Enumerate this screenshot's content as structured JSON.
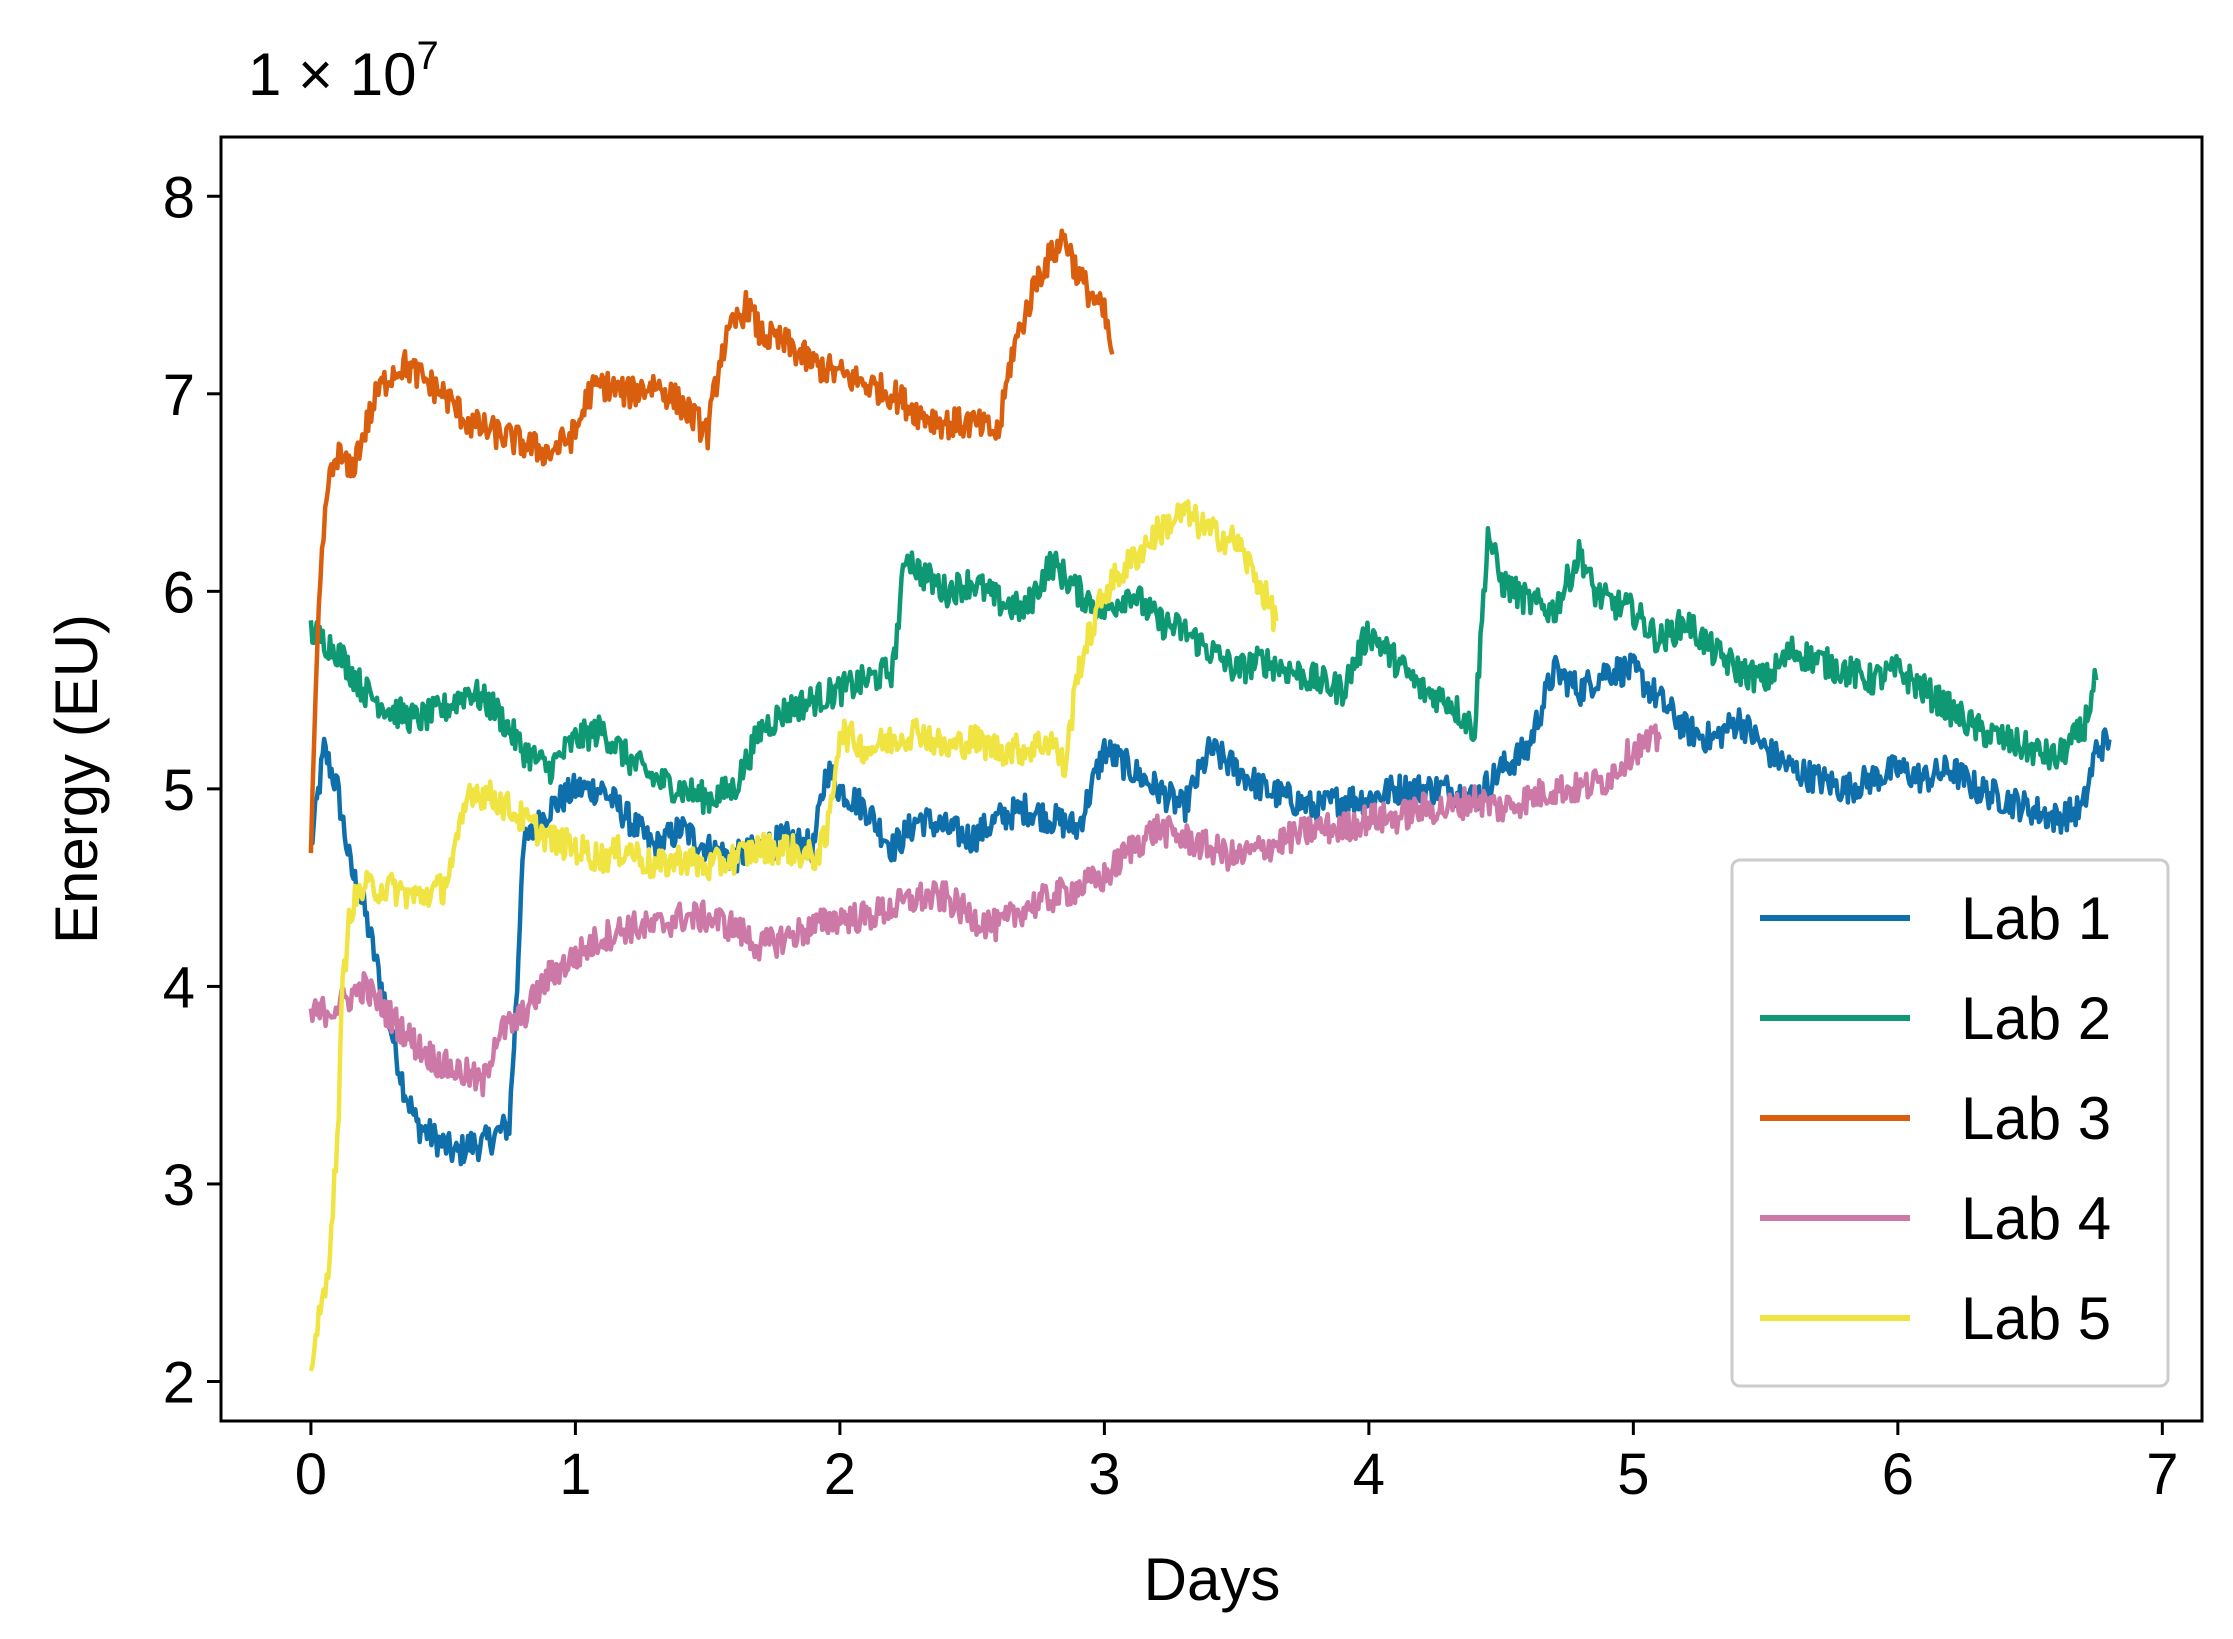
{
  "chart_data": {
    "type": "line",
    "title": "",
    "xlabel": "Days",
    "ylabel": "Energy (EU)",
    "offset_label": {
      "base": "1 × 10",
      "exponent": "7"
    },
    "xlim": [
      -0.34,
      7.15
    ],
    "ylim": [
      1.8,
      8.3
    ],
    "xticks": [
      0,
      1,
      2,
      3,
      4,
      5,
      6,
      7
    ],
    "yticks": [
      2,
      3,
      4,
      5,
      6,
      7,
      8
    ],
    "legend_position": "lower-right",
    "grid": false,
    "series": [
      {
        "name": "Lab 1",
        "color": "#0f6fab",
        "x": [
          0,
          0.05,
          0.1,
          0.15,
          0.2,
          0.25,
          0.3,
          0.35,
          0.4,
          0.45,
          0.5,
          0.55,
          0.6,
          0.65,
          0.7,
          0.75,
          0.78,
          0.8,
          0.85,
          0.9,
          1.0,
          1.1,
          1.2,
          1.3,
          1.4,
          1.5,
          1.6,
          1.7,
          1.8,
          1.9,
          1.95,
          2.0,
          2.1,
          2.2,
          2.3,
          2.4,
          2.5,
          2.6,
          2.7,
          2.8,
          2.9,
          2.95,
          3.0,
          3.1,
          3.2,
          3.3,
          3.4,
          3.5,
          3.6,
          3.7,
          3.8,
          3.9,
          4.0,
          4.1,
          4.2,
          4.3,
          4.4,
          4.5,
          4.6,
          4.7,
          4.8,
          4.9,
          5.0,
          5.1,
          5.2,
          5.3,
          5.4,
          5.5,
          5.6,
          5.7,
          5.8,
          5.9,
          6.0,
          6.1,
          6.2,
          6.3,
          6.4,
          6.5,
          6.6,
          6.7,
          6.75,
          6.8
        ],
        "y": [
          4.7,
          5.2,
          5.0,
          4.6,
          4.4,
          4.1,
          3.8,
          3.5,
          3.3,
          3.25,
          3.2,
          3.15,
          3.2,
          3.2,
          3.25,
          3.3,
          4.0,
          4.7,
          4.8,
          4.9,
          5.0,
          5.0,
          4.85,
          4.7,
          4.8,
          4.7,
          4.65,
          4.7,
          4.75,
          4.7,
          5.1,
          5.0,
          4.9,
          4.7,
          4.85,
          4.8,
          4.75,
          4.85,
          4.9,
          4.85,
          4.8,
          5.0,
          5.2,
          5.1,
          5.0,
          4.9,
          5.2,
          5.1,
          5.0,
          4.95,
          4.9,
          4.95,
          4.95,
          5.0,
          5.0,
          5.0,
          4.95,
          5.1,
          5.2,
          5.6,
          5.5,
          5.6,
          5.6,
          5.45,
          5.3,
          5.25,
          5.35,
          5.2,
          5.1,
          5.05,
          5.0,
          5.05,
          5.1,
          5.05,
          5.1,
          5.0,
          4.95,
          4.9,
          4.85,
          4.9,
          5.2,
          5.25
        ]
      },
      {
        "name": "Lab 2",
        "color": "#0e9873",
        "x": [
          0,
          0.1,
          0.2,
          0.3,
          0.4,
          0.5,
          0.6,
          0.7,
          0.8,
          0.9,
          1.0,
          1.1,
          1.2,
          1.3,
          1.4,
          1.5,
          1.6,
          1.7,
          1.8,
          1.9,
          2.0,
          2.1,
          2.2,
          2.25,
          2.3,
          2.4,
          2.5,
          2.6,
          2.7,
          2.8,
          2.9,
          3.0,
          3.1,
          3.2,
          3.3,
          3.4,
          3.5,
          3.6,
          3.7,
          3.8,
          3.9,
          4.0,
          4.1,
          4.2,
          4.3,
          4.4,
          4.45,
          4.5,
          4.6,
          4.7,
          4.8,
          4.85,
          4.9,
          5.0,
          5.1,
          5.2,
          5.3,
          5.4,
          5.5,
          5.6,
          5.7,
          5.8,
          5.9,
          6.0,
          6.1,
          6.2,
          6.3,
          6.4,
          6.5,
          6.6,
          6.7,
          6.75
        ],
        "y": [
          5.8,
          5.7,
          5.5,
          5.4,
          5.35,
          5.4,
          5.5,
          5.4,
          5.2,
          5.1,
          5.25,
          5.3,
          5.15,
          5.05,
          5.0,
          4.95,
          5.0,
          5.3,
          5.4,
          5.45,
          5.5,
          5.55,
          5.6,
          6.2,
          6.1,
          6.0,
          6.05,
          5.95,
          5.9,
          6.15,
          6.0,
          5.9,
          6.0,
          5.85,
          5.8,
          5.7,
          5.6,
          5.65,
          5.6,
          5.55,
          5.5,
          5.8,
          5.65,
          5.5,
          5.45,
          5.3,
          6.3,
          6.05,
          5.95,
          5.9,
          6.2,
          6.0,
          5.95,
          5.9,
          5.75,
          5.85,
          5.7,
          5.6,
          5.55,
          5.7,
          5.65,
          5.6,
          5.55,
          5.6,
          5.5,
          5.4,
          5.3,
          5.25,
          5.2,
          5.15,
          5.3,
          5.55
        ]
      },
      {
        "name": "Lab 3",
        "color": "#d95f0e",
        "x": [
          0,
          0.03,
          0.06,
          0.1,
          0.15,
          0.2,
          0.25,
          0.3,
          0.35,
          0.4,
          0.45,
          0.5,
          0.6,
          0.7,
          0.8,
          0.9,
          1.0,
          1.05,
          1.1,
          1.2,
          1.3,
          1.4,
          1.5,
          1.55,
          1.6,
          1.65,
          1.7,
          1.8,
          1.9,
          2.0,
          2.1,
          2.2,
          2.3,
          2.4,
          2.5,
          2.6,
          2.65,
          2.7,
          2.75,
          2.8,
          2.85,
          2.9,
          2.95,
          3.0,
          3.03
        ],
        "y": [
          4.7,
          5.9,
          6.5,
          6.7,
          6.6,
          6.8,
          7.0,
          7.1,
          7.15,
          7.1,
          7.05,
          7.0,
          6.85,
          6.8,
          6.75,
          6.7,
          6.8,
          7.0,
          7.05,
          7.0,
          7.05,
          6.95,
          6.8,
          7.2,
          7.35,
          7.45,
          7.3,
          7.25,
          7.15,
          7.1,
          7.05,
          7.0,
          6.9,
          6.85,
          6.85,
          6.8,
          7.2,
          7.4,
          7.6,
          7.7,
          7.8,
          7.6,
          7.5,
          7.4,
          7.2
        ]
      },
      {
        "name": "Lab 4",
        "color": "#cc79a7",
        "x": [
          0,
          0.1,
          0.2,
          0.3,
          0.4,
          0.5,
          0.6,
          0.65,
          0.7,
          0.8,
          0.9,
          1.0,
          1.1,
          1.2,
          1.3,
          1.4,
          1.5,
          1.6,
          1.7,
          1.8,
          1.9,
          2.0,
          2.1,
          2.2,
          2.3,
          2.4,
          2.5,
          2.6,
          2.7,
          2.8,
          2.9,
          3.0,
          3.1,
          3.2,
          3.3,
          3.4,
          3.5,
          3.6,
          3.7,
          3.8,
          3.9,
          4.0,
          4.1,
          4.2,
          4.3,
          4.4,
          4.5,
          4.6,
          4.7,
          4.8,
          4.9,
          5.0,
          5.1
        ],
        "y": [
          3.85,
          3.9,
          4.0,
          3.85,
          3.7,
          3.6,
          3.55,
          3.5,
          3.75,
          3.85,
          4.05,
          4.15,
          4.25,
          4.3,
          4.3,
          4.35,
          4.35,
          4.3,
          4.2,
          4.25,
          4.3,
          4.35,
          4.35,
          4.4,
          4.45,
          4.45,
          4.35,
          4.3,
          4.4,
          4.45,
          4.5,
          4.55,
          4.7,
          4.8,
          4.75,
          4.7,
          4.65,
          4.7,
          4.75,
          4.8,
          4.8,
          4.85,
          4.85,
          4.9,
          4.9,
          4.95,
          4.9,
          4.95,
          5.0,
          5.0,
          5.05,
          5.2,
          5.25
        ]
      },
      {
        "name": "Lab 5",
        "color": "#f0e442",
        "x": [
          0,
          0.03,
          0.06,
          0.1,
          0.12,
          0.15,
          0.2,
          0.3,
          0.4,
          0.5,
          0.55,
          0.6,
          0.7,
          0.8,
          0.9,
          1.0,
          1.1,
          1.2,
          1.3,
          1.4,
          1.5,
          1.6,
          1.7,
          1.8,
          1.9,
          1.95,
          2.0,
          2.1,
          2.2,
          2.3,
          2.4,
          2.5,
          2.6,
          2.7,
          2.8,
          2.85,
          2.9,
          2.95,
          3.0,
          3.1,
          3.2,
          3.3,
          3.4,
          3.5,
          3.6,
          3.65
        ],
        "y": [
          2.1,
          2.3,
          2.5,
          3.2,
          4.0,
          4.4,
          4.5,
          4.5,
          4.45,
          4.5,
          4.7,
          5.0,
          4.95,
          4.85,
          4.75,
          4.7,
          4.65,
          4.7,
          4.6,
          4.65,
          4.6,
          4.65,
          4.7,
          4.7,
          4.65,
          4.75,
          5.3,
          5.2,
          5.25,
          5.3,
          5.2,
          5.25,
          5.2,
          5.2,
          5.25,
          5.1,
          5.6,
          5.8,
          6.0,
          6.15,
          6.3,
          6.4,
          6.3,
          6.25,
          6.0,
          5.85
        ]
      }
    ]
  }
}
